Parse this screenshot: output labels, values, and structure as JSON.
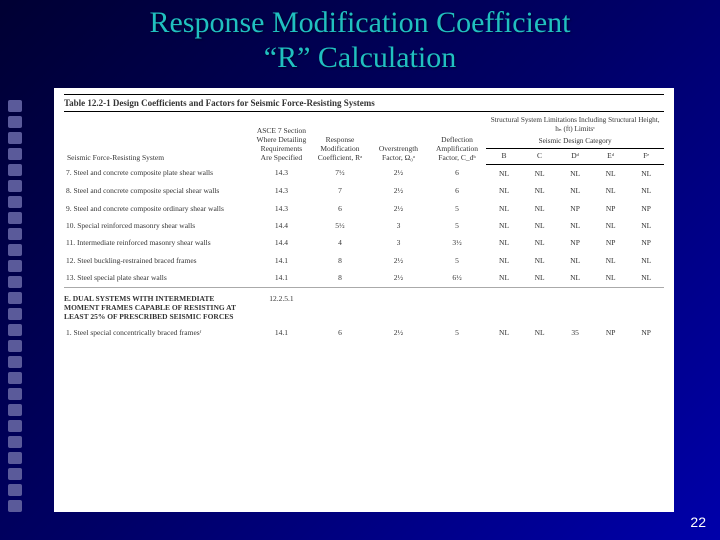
{
  "slide": {
    "title_line1": "Response Modification Coefficient",
    "title_line2": "“R” Calculation",
    "page_number": "22"
  },
  "table": {
    "caption": "Table 12.2-1 Design Coefficients and Factors for Seismic Force-Resisting Systems",
    "headers": {
      "system": "Seismic Force-Resisting System",
      "asce": "ASCE 7 Section Where Detailing Requirements Are Specified",
      "r": "Response Modification Coefficient, Rᵃ",
      "omega": "Overstrength Factor, Ω₀ᵃ",
      "cd": "Deflection Amplification Factor, C_dᵇ",
      "limits_group": "Structural System Limitations Including Structural Height, hₙ (ft) Limitsᶜ",
      "sdc_label": "Seismic Design Category",
      "sdc": [
        "B",
        "C",
        "Dᵈ",
        "Eᵈ",
        "Fᵉ"
      ]
    },
    "rows": [
      {
        "n": "7.",
        "sys": "Steel and concrete composite plate shear walls",
        "asce": "14.3",
        "r": "7½",
        "omega": "2½",
        "cd": "6",
        "l": [
          "NL",
          "NL",
          "NL",
          "NL",
          "NL"
        ]
      },
      {
        "n": "8.",
        "sys": "Steel and concrete composite special shear walls",
        "asce": "14.3",
        "r": "7",
        "omega": "2½",
        "cd": "6",
        "l": [
          "NL",
          "NL",
          "NL",
          "NL",
          "NL"
        ]
      },
      {
        "n": "9.",
        "sys": "Steel and concrete composite ordinary shear walls",
        "asce": "14.3",
        "r": "6",
        "omega": "2½",
        "cd": "5",
        "l": [
          "NL",
          "NL",
          "NP",
          "NP",
          "NP"
        ]
      },
      {
        "n": "10.",
        "sys": "Special reinforced masonry shear walls",
        "asce": "14.4",
        "r": "5½",
        "omega": "3",
        "cd": "5",
        "l": [
          "NL",
          "NL",
          "NL",
          "NL",
          "NL"
        ]
      },
      {
        "n": "11.",
        "sys": "Intermediate reinforced masonry shear walls",
        "asce": "14.4",
        "r": "4",
        "omega": "3",
        "cd": "3½",
        "l": [
          "NL",
          "NL",
          "NP",
          "NP",
          "NP"
        ]
      },
      {
        "n": "12.",
        "sys": "Steel buckling-restrained braced frames",
        "asce": "14.1",
        "r": "8",
        "omega": "2½",
        "cd": "5",
        "l": [
          "NL",
          "NL",
          "NL",
          "NL",
          "NL"
        ]
      },
      {
        "n": "13.",
        "sys": "Steel special plate shear walls",
        "asce": "14.1",
        "r": "8",
        "omega": "2½",
        "cd": "6½",
        "l": [
          "NL",
          "NL",
          "NL",
          "NL",
          "NL"
        ]
      }
    ],
    "section": {
      "letter": "E.",
      "title": "DUAL SYSTEMS WITH INTERMEDIATE MOMENT FRAMES CAPABLE OF RESISTING AT LEAST 25% OF PRESCRIBED SEISMIC FORCES",
      "asce": "12.2.5.1"
    },
    "rows2": [
      {
        "n": "1.",
        "sys": "Steel special concentrically braced framesᶠ",
        "asce": "14.1",
        "r": "6",
        "omega": "2½",
        "cd": "5",
        "l": [
          "NL",
          "NL",
          "35",
          "NP",
          "NP"
        ]
      }
    ]
  }
}
